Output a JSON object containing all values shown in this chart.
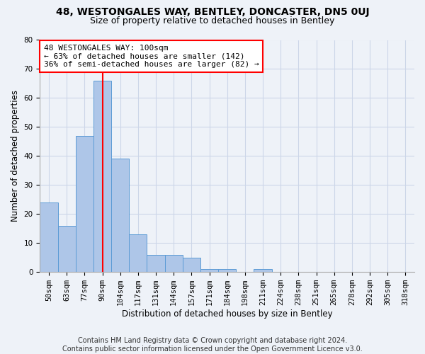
{
  "title": "48, WESTONGALES WAY, BENTLEY, DONCASTER, DN5 0UJ",
  "subtitle": "Size of property relative to detached houses in Bentley",
  "xlabel": "Distribution of detached houses by size in Bentley",
  "ylabel": "Number of detached properties",
  "footer_line1": "Contains HM Land Registry data © Crown copyright and database right 2024.",
  "footer_line2": "Contains public sector information licensed under the Open Government Licence v3.0.",
  "categories": [
    "50sqm",
    "63sqm",
    "77sqm",
    "90sqm",
    "104sqm",
    "117sqm",
    "131sqm",
    "144sqm",
    "157sqm",
    "171sqm",
    "184sqm",
    "198sqm",
    "211sqm",
    "224sqm",
    "238sqm",
    "251sqm",
    "265sqm",
    "278sqm",
    "292sqm",
    "305sqm",
    "318sqm"
  ],
  "values": [
    24,
    16,
    47,
    66,
    39,
    13,
    6,
    6,
    5,
    1,
    1,
    0,
    1,
    0,
    0,
    0,
    0,
    0,
    0,
    0,
    0
  ],
  "bar_color": "#aec6e8",
  "bar_edge_color": "#5b9bd5",
  "highlight_bar_index": 3,
  "highlight_color": "red",
  "annotation_text": "48 WESTONGALES WAY: 100sqm\n← 63% of detached houses are smaller (142)\n36% of semi-detached houses are larger (82) →",
  "annotation_box_color": "white",
  "annotation_box_edge": "red",
  "ylim": [
    0,
    80
  ],
  "yticks": [
    0,
    10,
    20,
    30,
    40,
    50,
    60,
    70,
    80
  ],
  "grid_color": "#ccd6e8",
  "background_color": "#eef2f8",
  "title_fontsize": 10,
  "subtitle_fontsize": 9,
  "axis_label_fontsize": 8.5,
  "tick_fontsize": 7.5,
  "footer_fontsize": 7
}
